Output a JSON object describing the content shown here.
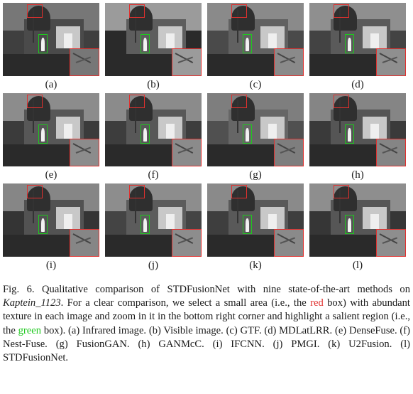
{
  "panels": [
    {
      "label": "(a)",
      "tone": "#3f3f3f",
      "sky": "#777777",
      "wall": "#4a4a4a"
    },
    {
      "label": "(b)",
      "tone": "#2a2a2a",
      "sky": "#9b9b9b",
      "wall": "#5d5d5d"
    },
    {
      "label": "(c)",
      "tone": "#4a4a4a",
      "sky": "#8a8a8a",
      "wall": "#616161"
    },
    {
      "label": "(d)",
      "tone": "#434343",
      "sky": "#8f8f8f",
      "wall": "#5a5a5a"
    },
    {
      "label": "(e)",
      "tone": "#3b3b3b",
      "sky": "#8c8c8c",
      "wall": "#575757"
    },
    {
      "label": "(f)",
      "tone": "#3d3d3d",
      "sky": "#8b8b8b",
      "wall": "#585858"
    },
    {
      "label": "(g)",
      "tone": "#505050",
      "sky": "#7e7e7e",
      "wall": "#666666"
    },
    {
      "label": "(h)",
      "tone": "#3a3a3a",
      "sky": "#858585",
      "wall": "#555555"
    },
    {
      "label": "(i)",
      "tone": "#343434",
      "sky": "#868686",
      "wall": "#525252"
    },
    {
      "label": "(j)",
      "tone": "#444444",
      "sky": "#8d8d8d",
      "wall": "#5c5c5c"
    },
    {
      "label": "(k)",
      "tone": "#3e3e3e",
      "sky": "#8a8a8a",
      "wall": "#595959"
    },
    {
      "label": "(l)",
      "tone": "#363636",
      "sky": "#8e8e8e",
      "wall": "#565656"
    }
  ],
  "caption": {
    "p1": "Fig. 6.   Qualitative comparison of STDFusionNet with nine state-of-the-art methods on ",
    "dataset": "Kaptein_1123",
    "p2": ". For a clear comparison, we select a small area (i.e., the ",
    "red_word": "red",
    "p3": " box) with abundant texture in each image and zoom in it in the bottom right corner and highlight a salient region (i.e., the ",
    "green_word": "green",
    "p4": " box). (a) Infrared image. (b) Visible image. (c) GTF. (d) MDLatLRR. (e) DenseFuse. (f) Nest-Fuse. (g) FusionGAN. (h) GANMcC. (i) IFCNN. (j) PMGI. (k) U2Fusion. (l) STDFusionNet."
  },
  "colors": {
    "red_box": "#e0302e",
    "green_box": "#1ec81e"
  }
}
